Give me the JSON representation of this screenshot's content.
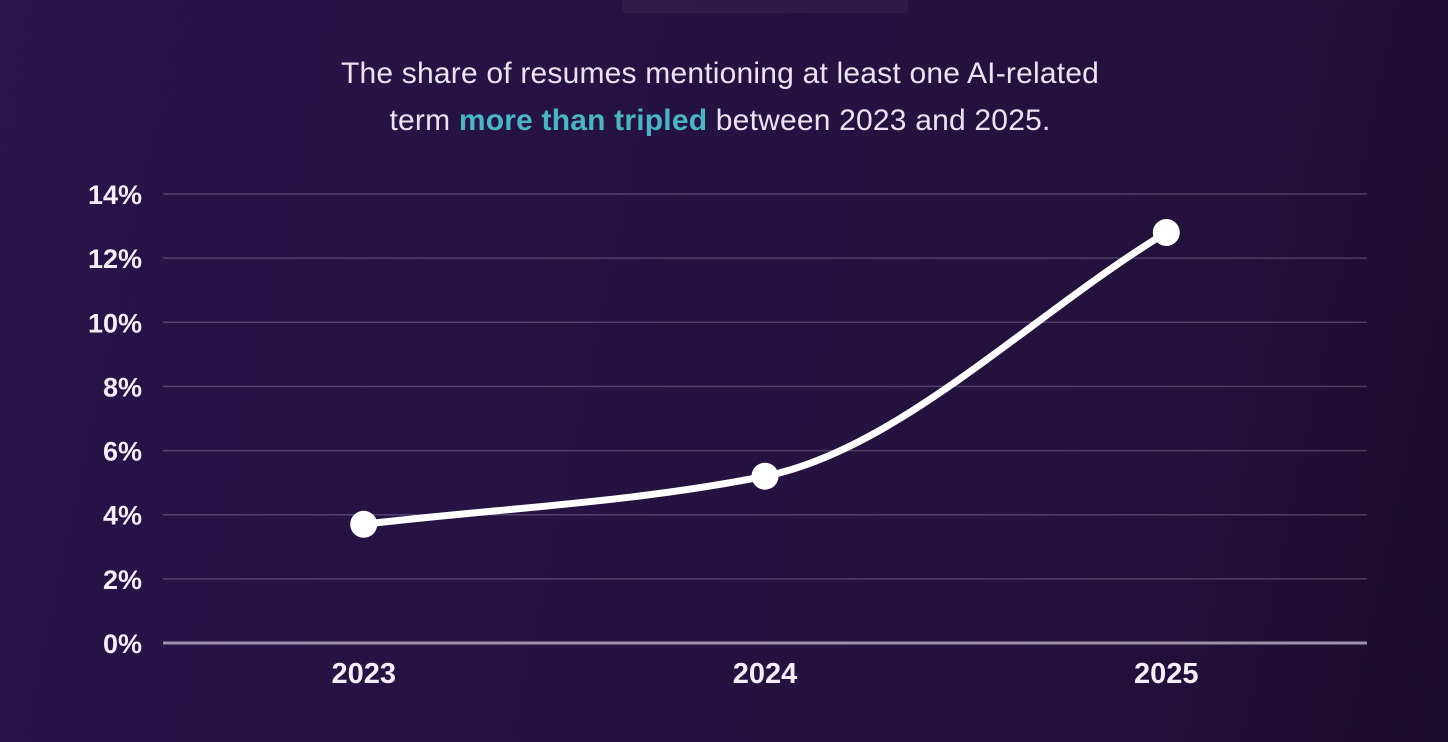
{
  "title": {
    "line1": "The share of resumes mentioning at least one AI-related",
    "line2_pre": "term ",
    "line2_highlight": "more than tripled",
    "line2_post": " between 2023 and 2025."
  },
  "colors": {
    "background": "#251240",
    "background_edge": "#1a0c2d",
    "title_text": "#eae4f2",
    "highlight_teal": "#48b7c0",
    "axis_text": "#f3eef8",
    "gridline": "rgba(216,206,232,0.25)",
    "axis_baseline": "#9c92ad",
    "line": "#ffffff",
    "point": "#ffffff"
  },
  "chart_data": {
    "type": "line",
    "title": "The share of resumes mentioning at least one AI-related term more than tripled between 2023 and 2025.",
    "categories": [
      "2023",
      "2024",
      "2025"
    ],
    "series": [
      {
        "name": "Share of resumes mentioning at least one AI-related term",
        "values": [
          3.7,
          5.2,
          12.8
        ]
      }
    ],
    "xlabel": "",
    "ylabel": "",
    "ylim": [
      0,
      14
    ],
    "ytick_values": [
      0,
      2,
      4,
      6,
      8,
      10,
      12,
      14
    ],
    "ytick_labels": [
      "0%",
      "2%",
      "4%",
      "6%",
      "8%",
      "10%",
      "12%",
      "14%"
    ],
    "grid": true,
    "legend": false,
    "curve": "smooth-monotone"
  }
}
